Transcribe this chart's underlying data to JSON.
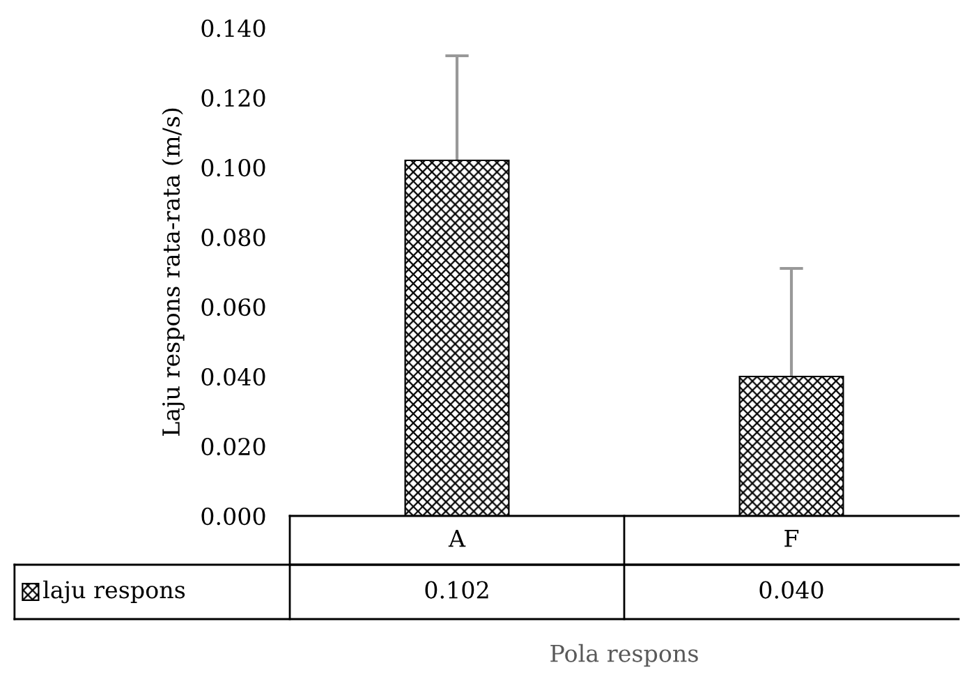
{
  "chart_data": {
    "type": "bar",
    "xlabel": "Pola respons",
    "ylabel": "Laju respons rata-rata (m/s)",
    "categories": [
      "A",
      "F"
    ],
    "series": [
      {
        "name": "laju respons",
        "color": "#000000",
        "values": [
          0.102,
          0.04
        ],
        "value_labels": [
          "0.102",
          "0.040"
        ],
        "errors": [
          0.03,
          0.031
        ]
      }
    ],
    "ylim": [
      0,
      0.14
    ],
    "yticks": [
      {
        "value": 0,
        "label": "0.000"
      },
      {
        "value": 0.02,
        "label": "0.020"
      },
      {
        "value": 0.04,
        "label": "0.040"
      },
      {
        "value": 0.06,
        "label": "0.060"
      },
      {
        "value": 0.08,
        "label": "0.080"
      },
      {
        "value": 0.1,
        "label": "0.100"
      },
      {
        "value": 0.12,
        "label": "0.120"
      },
      {
        "value": 0.14,
        "label": "0.140"
      }
    ],
    "grid": false
  }
}
